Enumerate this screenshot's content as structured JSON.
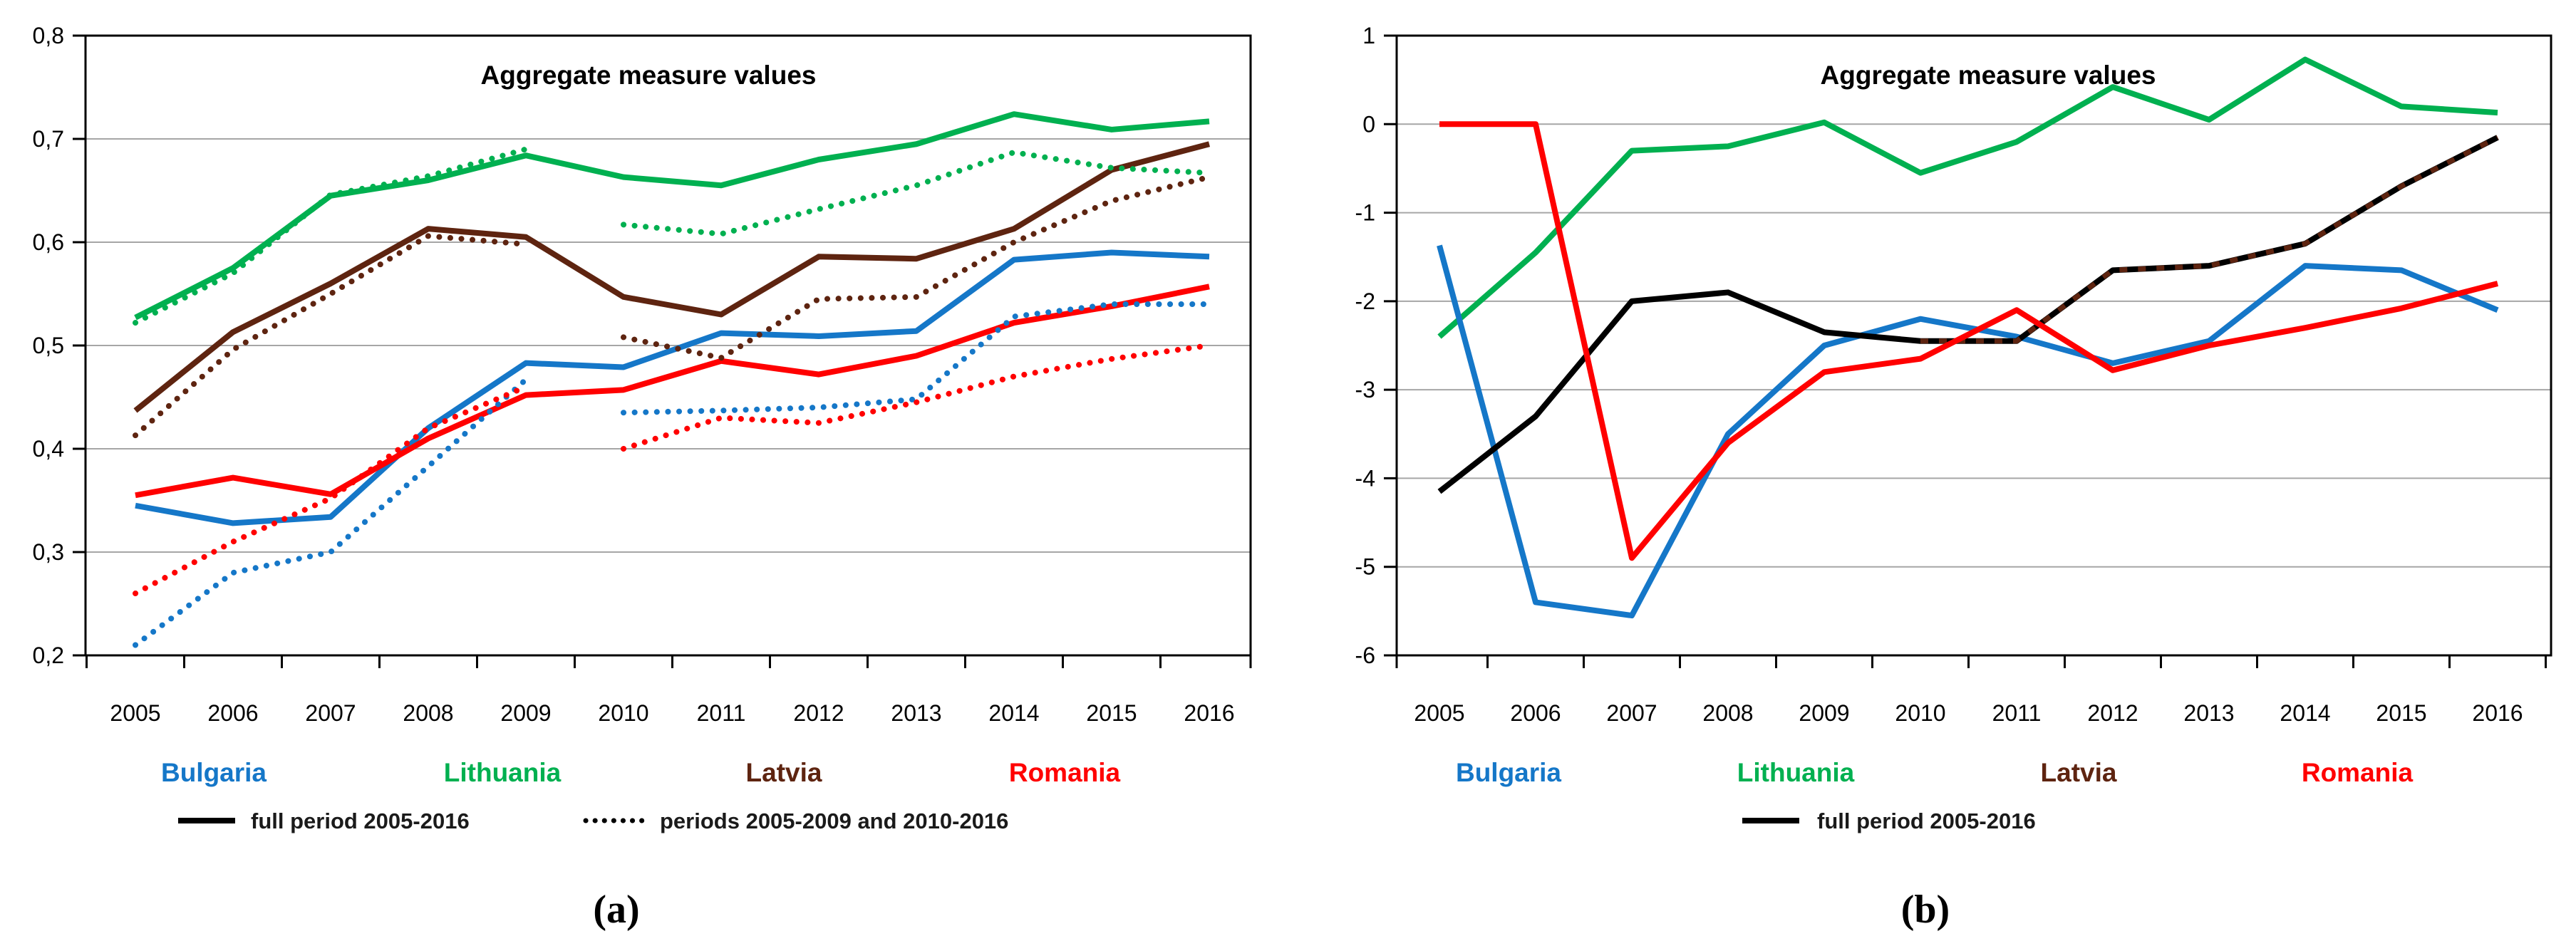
{
  "figure": {
    "background": "#ffffff",
    "description_texts": {
      "title_a": "Aggregate measure values",
      "title_b": "Aggregate measure values"
    }
  },
  "colors": {
    "bulgaria_blue": "#1577C8",
    "lithuania_green": "#00B050",
    "latvia_brown": "#5E2410",
    "romania_red": "#FF0000",
    "latvia_black_line_chart_b": "#000000",
    "latvia_dash_overlay_chart_b": "#5E2410",
    "gridline_gray": "#A6A6A6",
    "axis_black": "#000000"
  },
  "chart_data": [
    {
      "id": "a",
      "type": "line",
      "title": "Aggregate measure values",
      "caption": "(a)",
      "x": [
        2005,
        2006,
        2007,
        2008,
        2009,
        2010,
        2011,
        2012,
        2013,
        2014,
        2015,
        2016
      ],
      "ylim": [
        0.2,
        0.8
      ],
      "ytick_values": [
        0.8,
        0.7,
        0.6,
        0.5,
        0.4,
        0.3,
        0.2
      ],
      "ytick_labels": [
        "0,8",
        "0,7",
        "0,6",
        "0,5",
        "0,4",
        "0,3",
        "0,2"
      ],
      "grid": true,
      "legend_position": "bottom",
      "series": [
        {
          "name": "Lithuania",
          "color": "#00B050",
          "style": "solid",
          "x_start": 2005,
          "values": [
            0.527,
            0.575,
            0.645,
            0.66,
            0.684,
            0.663,
            0.655,
            0.68,
            0.695,
            0.724,
            0.709,
            0.717
          ]
        },
        {
          "name": "Latvia",
          "color": "#5E2410",
          "style": "solid",
          "x_start": 2005,
          "values": [
            0.437,
            0.513,
            0.56,
            0.613,
            0.605,
            0.547,
            0.53,
            0.586,
            0.584,
            0.613,
            0.67,
            0.695
          ]
        },
        {
          "name": "Bulgaria",
          "color": "#1577C8",
          "style": "solid",
          "x_start": 2005,
          "values": [
            0.345,
            0.328,
            0.334,
            0.42,
            0.483,
            0.479,
            0.512,
            0.509,
            0.514,
            0.583,
            0.59,
            0.586
          ]
        },
        {
          "name": "Romania",
          "color": "#FF0000",
          "style": "solid",
          "x_start": 2005,
          "values": [
            0.355,
            0.372,
            0.356,
            0.41,
            0.452,
            0.457,
            0.485,
            0.472,
            0.49,
            0.522,
            0.538,
            0.557
          ]
        },
        {
          "name": "Lithuania periods 2005-2009",
          "color": "#00B050",
          "style": "dotted",
          "x_start": 2005,
          "values": [
            0.522,
            0.57,
            0.646,
            0.664,
            0.69
          ]
        },
        {
          "name": "Latvia periods 2005-2009",
          "color": "#5E2410",
          "style": "dotted",
          "x_start": 2005,
          "values": [
            0.413,
            0.496,
            0.55,
            0.606,
            0.598
          ]
        },
        {
          "name": "Bulgaria periods 2005-2009",
          "color": "#1577C8",
          "style": "dotted",
          "x_start": 2005,
          "values": [
            0.21,
            0.28,
            0.3,
            0.383,
            0.467
          ]
        },
        {
          "name": "Romania periods 2005-2009",
          "color": "#FF0000",
          "style": "dotted",
          "x_start": 2005,
          "values": [
            0.26,
            0.31,
            0.352,
            0.42,
            0.46
          ]
        },
        {
          "name": "Lithuania periods 2010-2016",
          "color": "#00B050",
          "style": "dotted",
          "x_start": 2010,
          "values": [
            0.617,
            0.608,
            0.632,
            0.655,
            0.687,
            0.672,
            0.667
          ]
        },
        {
          "name": "Latvia periods 2010-2016",
          "color": "#5E2410",
          "style": "dotted",
          "x_start": 2010,
          "values": [
            0.508,
            0.488,
            0.545,
            0.547,
            0.6,
            0.64,
            0.663
          ]
        },
        {
          "name": "Bulgaria periods 2010-2016",
          "color": "#1577C8",
          "style": "dotted",
          "x_start": 2010,
          "values": [
            0.435,
            0.437,
            0.44,
            0.448,
            0.528,
            0.54,
            0.54
          ]
        },
        {
          "name": "Romania periods 2010-2016",
          "color": "#FF0000",
          "style": "dotted",
          "x_start": 2010,
          "values": [
            0.4,
            0.43,
            0.425,
            0.445,
            0.47,
            0.487,
            0.5
          ]
        }
      ],
      "legend_countries": [
        {
          "label": "Bulgaria",
          "color": "#1577C8"
        },
        {
          "label": "Lithuania",
          "color": "#00B050"
        },
        {
          "label": "Latvia",
          "color": "#5E2410"
        },
        {
          "label": "Romania",
          "color": "#FF0000"
        }
      ],
      "legend_periods": [
        {
          "style": "solid",
          "label": "full period 2005-2016"
        },
        {
          "style": "dotted",
          "label": "periods 2005-2009 and 2010-2016"
        }
      ]
    },
    {
      "id": "b",
      "type": "line",
      "title": "Aggregate measure values",
      "caption": "(b)",
      "x": [
        2005,
        2006,
        2007,
        2008,
        2009,
        2010,
        2011,
        2012,
        2013,
        2014,
        2015,
        2016
      ],
      "ylim": [
        -6,
        1
      ],
      "ytick_values": [
        1,
        0,
        -1,
        -2,
        -3,
        -4,
        -5,
        -6
      ],
      "ytick_labels": [
        "1",
        "0",
        "-1",
        "-2",
        "-3",
        "-4",
        "-5",
        "-6"
      ],
      "grid": true,
      "legend_position": "bottom",
      "series": [
        {
          "name": "Lithuania",
          "color": "#00B050",
          "style": "solid",
          "x_start": 2005,
          "values": [
            -2.4,
            -1.45,
            -0.3,
            -0.25,
            0.02,
            -0.55,
            -0.2,
            0.42,
            0.05,
            0.73,
            0.2,
            0.13
          ]
        },
        {
          "name": "Bulgaria",
          "color": "#1577C8",
          "style": "solid",
          "x_start": 2005,
          "values": [
            -1.37,
            -5.4,
            -5.55,
            -3.5,
            -2.5,
            -2.2,
            -2.4,
            -2.7,
            -2.45,
            -1.6,
            -1.65,
            -2.1
          ]
        },
        {
          "name": "Latvia",
          "color": "#000000",
          "style": "solid",
          "x_start": 2005,
          "overlay": {
            "color": "#5E2410",
            "from_year": 2010,
            "style": "dashed"
          },
          "values": [
            -4.15,
            -3.3,
            -2.0,
            -1.9,
            -2.35,
            -2.45,
            -2.45,
            -1.65,
            -1.6,
            -1.35,
            -0.7,
            -0.15
          ]
        },
        {
          "name": "Romania",
          "color": "#FF0000",
          "style": "solid",
          "x_start": 2005,
          "values": [
            0.0,
            0.0,
            -4.9,
            -3.6,
            -2.8,
            -2.65,
            -2.1,
            -2.78,
            -2.5,
            -2.3,
            -2.08,
            -1.8
          ]
        }
      ],
      "legend_countries": [
        {
          "label": "Bulgaria",
          "color": "#1577C8"
        },
        {
          "label": "Lithuania",
          "color": "#00B050"
        },
        {
          "label": "Latvia",
          "color": "#5E2410"
        },
        {
          "label": "Romania",
          "color": "#FF0000"
        }
      ],
      "legend_periods": [
        {
          "style": "solid",
          "label": "full period 2005-2016"
        }
      ]
    }
  ]
}
